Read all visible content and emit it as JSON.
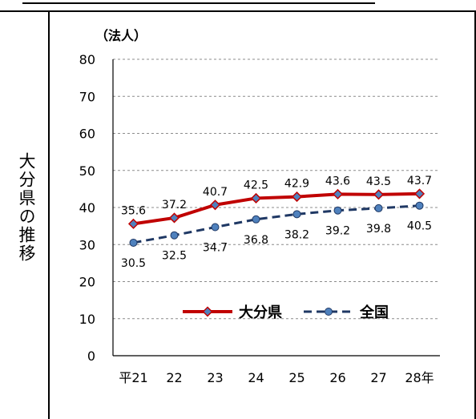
{
  "side_label": "大分県の推移",
  "chart_data": {
    "type": "line",
    "unit_label": "（法人）",
    "categories": [
      "平21",
      "22",
      "23",
      "24",
      "25",
      "26",
      "27",
      "28年"
    ],
    "ylim": [
      0,
      80
    ],
    "yticks": [
      "0",
      "10",
      "20",
      "30",
      "40",
      "50",
      "60",
      "70",
      "80"
    ],
    "grid": true,
    "legend_position": "bottom-center",
    "series": [
      {
        "name": "大分県",
        "color": "#c00000",
        "marker_color": "#4f81bd",
        "style": "solid",
        "values": [
          35.6,
          37.2,
          40.7,
          42.5,
          42.9,
          43.6,
          43.5,
          43.7
        ],
        "labels": [
          "35.6",
          "37.2",
          "40.7",
          "42.5",
          "42.9",
          "43.6",
          "43.5",
          "43.7"
        ]
      },
      {
        "name": "全国",
        "color": "#1f3864",
        "marker_color": "#4f81bd",
        "style": "dashed",
        "values": [
          30.5,
          32.5,
          34.7,
          36.8,
          38.2,
          39.2,
          39.8,
          40.5
        ],
        "labels": [
          "30.5",
          "32.5",
          "34.7",
          "36.8",
          "38.2",
          "39.2",
          "39.8",
          "40.5"
        ]
      }
    ]
  }
}
